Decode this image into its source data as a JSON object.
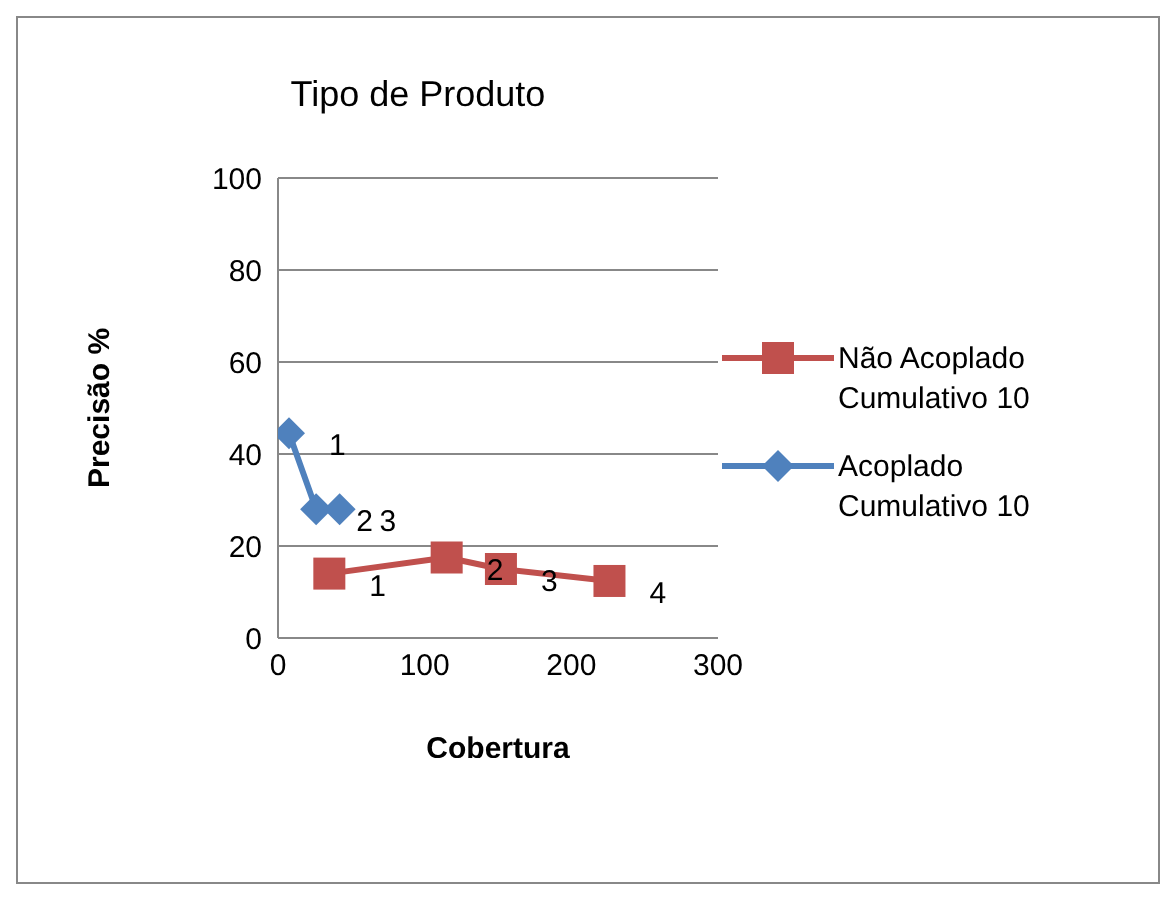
{
  "chart_data": {
    "type": "line",
    "title": "Tipo de Produto",
    "xlabel": "Cobertura",
    "ylabel": "Precisão %",
    "series": [
      {
        "name": "Não Acoplado Cumulativo 10",
        "color": "#c0504d",
        "marker": "square",
        "x": [
          35,
          115,
          152,
          226
        ],
        "values": [
          14,
          17.5,
          15,
          12.4
        ]
      },
      {
        "name": "Acoplado Cumulativo 10",
        "color": "#4f81bd",
        "marker": "diamond",
        "x": [
          7.5,
          26,
          42
        ],
        "values": [
          44.5,
          28,
          28
        ]
      }
    ],
    "annotations": [
      {
        "text": "1",
        "x": 35,
        "y": 14
      },
      {
        "text": "2",
        "x": 115,
        "y": 17.5
      },
      {
        "text": "3",
        "x": 152,
        "y": 15
      },
      {
        "text": "4",
        "x": 226,
        "y": 12.4
      },
      {
        "text": "1",
        "x": 7.5,
        "y": 44.5
      },
      {
        "text": "2",
        "x": 26,
        "y": 28
      },
      {
        "text": "3",
        "x": 42,
        "y": 28
      }
    ],
    "xlim": [
      0,
      300
    ],
    "xticks": [
      0,
      100,
      200,
      300
    ],
    "ylim": [
      0,
      100
    ],
    "yticks": [
      0,
      20,
      40,
      60,
      80,
      100
    ],
    "grid": "y",
    "legend": "right"
  }
}
